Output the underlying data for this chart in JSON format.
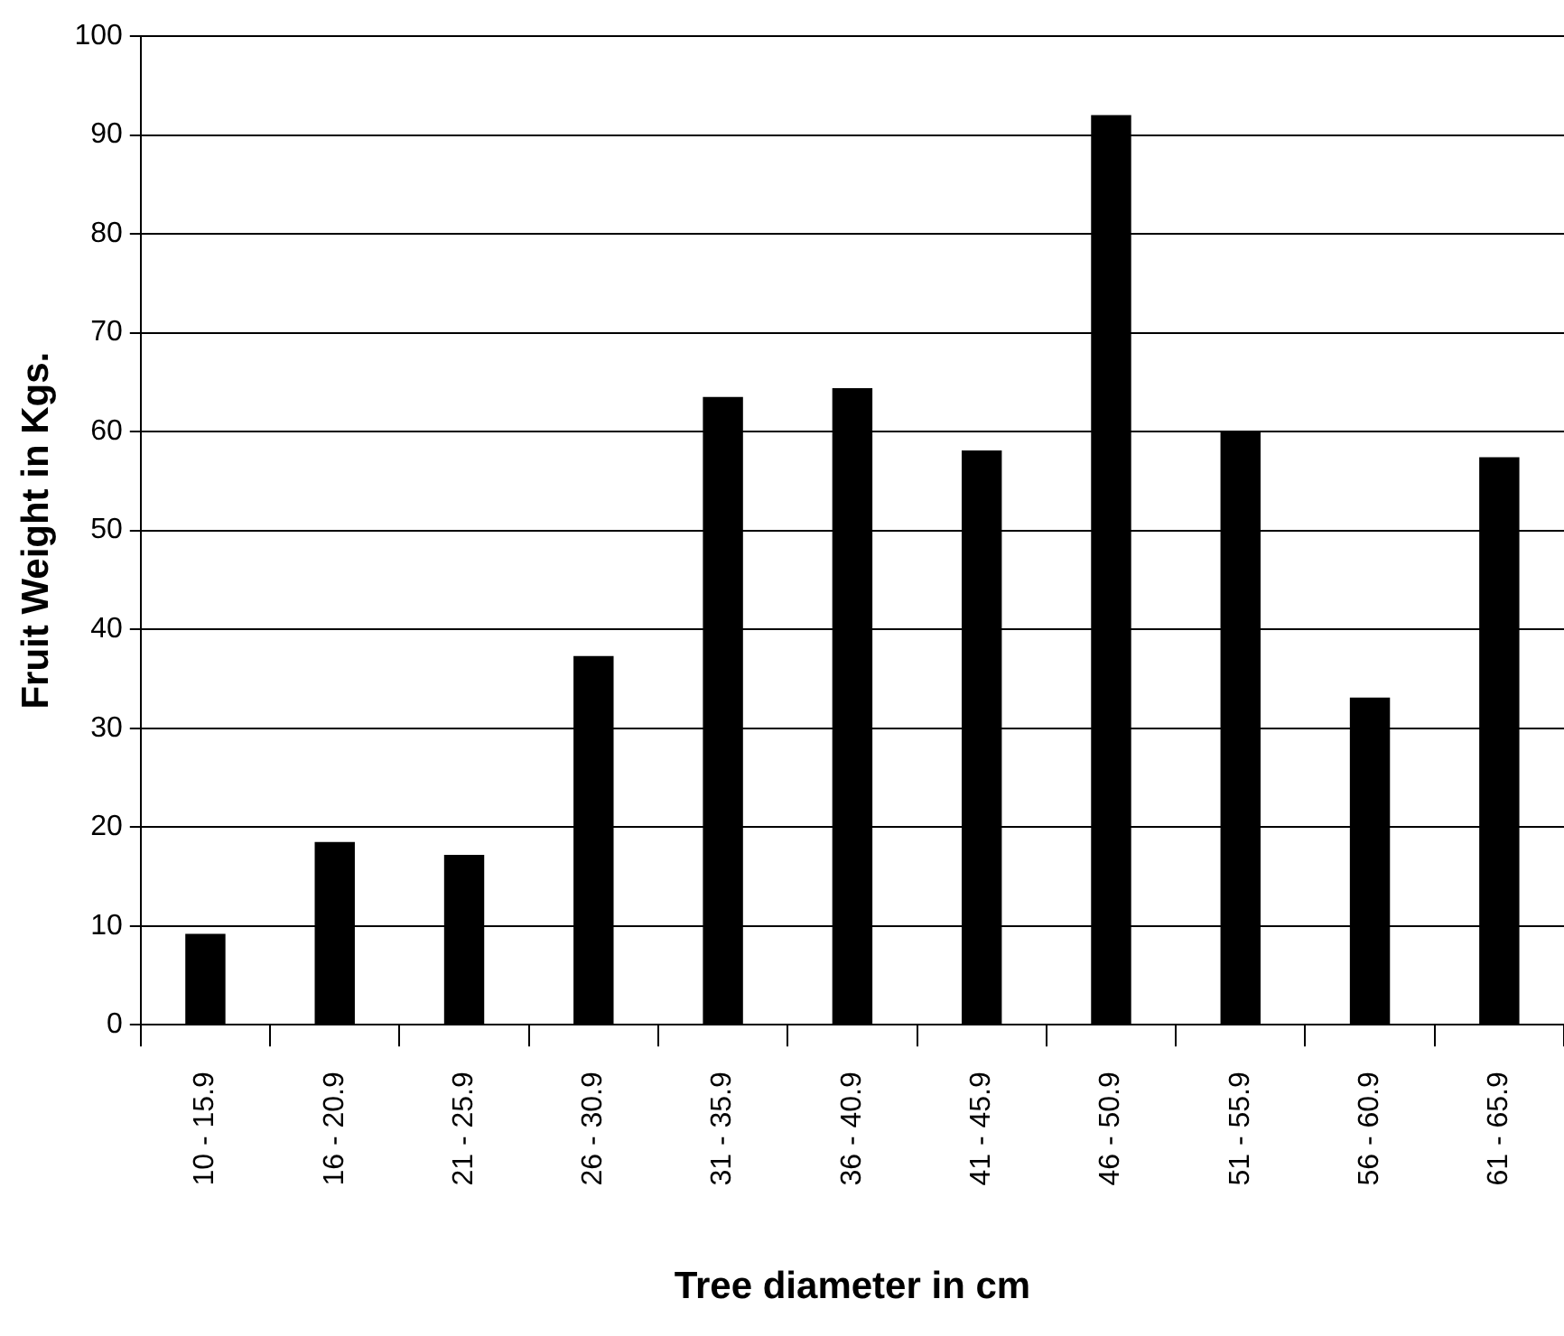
{
  "chart_data": {
    "type": "bar",
    "xlabel": "Tree diameter in cm",
    "ylabel": "Fruit Weight in Kgs.",
    "categories": [
      "10 - 15.9",
      "16 - 20.9",
      "21 - 25.9",
      "26 - 30.9",
      "31 - 35.9",
      "36 - 40.9",
      "41 - 45.9",
      "46 - 50.9",
      "51 - 55.9",
      "56 - 60.9",
      "61 - 65.9"
    ],
    "values": [
      9.2,
      18.5,
      17.2,
      37.3,
      63.5,
      64.4,
      58.1,
      92.0,
      60.0,
      33.1,
      57.4
    ],
    "color": "#000000",
    "ylim": [
      0,
      100
    ],
    "yticks": [
      0,
      10,
      20,
      30,
      40,
      50,
      60,
      70,
      80,
      90,
      100
    ],
    "grid": "y",
    "legend": false
  }
}
